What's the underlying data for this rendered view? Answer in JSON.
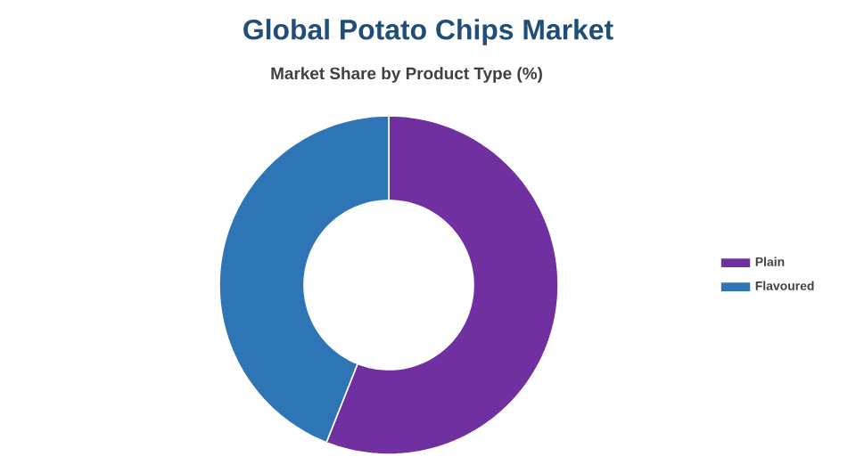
{
  "chart_data": {
    "type": "donut",
    "title": "Global Potato Chips Market",
    "subtitle": "Market Share by Product Type (%)",
    "categories": [
      "Plain",
      "Flavoured"
    ],
    "values": [
      56,
      44
    ],
    "colors": [
      "#7030a0",
      "#2e75b6"
    ],
    "legend": "right"
  }
}
